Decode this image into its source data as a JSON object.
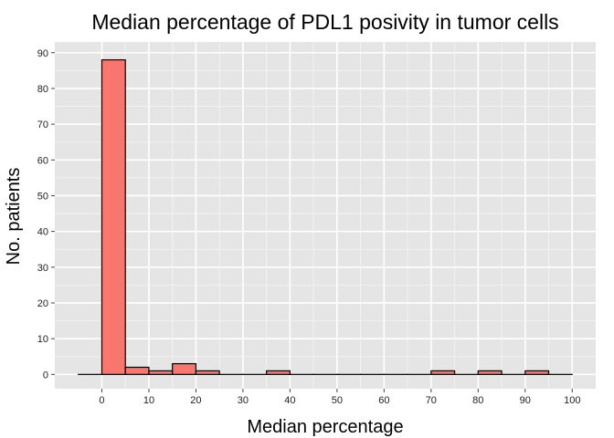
{
  "chart_data": {
    "type": "bar",
    "title": "Median percentage of PDL1 posivity in tumor cells",
    "xlabel": "Median percentage",
    "ylabel": "No. patients",
    "xlim": [
      -10,
      105
    ],
    "ylim": [
      -4,
      93
    ],
    "x_ticks": [
      0,
      10,
      20,
      30,
      40,
      50,
      60,
      70,
      80,
      90,
      100
    ],
    "y_ticks": [
      0,
      10,
      20,
      30,
      40,
      50,
      60,
      70,
      80,
      90
    ],
    "bin_width": 5,
    "bins_start": [
      -5,
      0,
      5,
      10,
      15,
      20,
      25,
      30,
      35,
      40,
      45,
      50,
      55,
      60,
      65,
      70,
      75,
      80,
      85,
      90,
      95
    ],
    "values": [
      0,
      88,
      2,
      1,
      3,
      1,
      0,
      0,
      1,
      0,
      0,
      0,
      0,
      0,
      0,
      1,
      0,
      1,
      0,
      1,
      0
    ],
    "grid": true,
    "colors": {
      "panel": "#e5e5e5",
      "grid_major": "#ffffff",
      "grid_minor": "#f2f2f2",
      "bar_fill": "#f8766d",
      "bar_stroke": "#000000"
    }
  }
}
